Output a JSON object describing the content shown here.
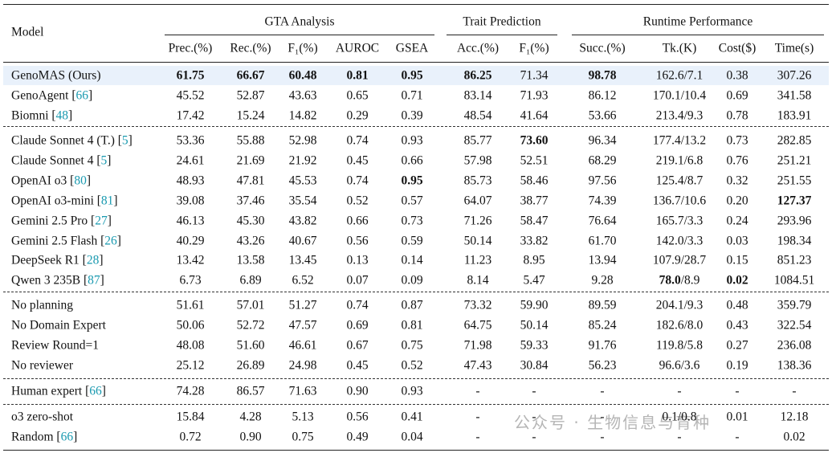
{
  "table": {
    "model_header": "Model",
    "groups": [
      {
        "title": "GTA Analysis",
        "columns": [
          "Prec.(%)",
          "Rec.(%)",
          "F₁(%)",
          "AUROC",
          "GSEA"
        ]
      },
      {
        "title": "Trait Prediction",
        "columns": [
          "Acc.(%)",
          "F₁(%)"
        ]
      },
      {
        "title": "Runtime Performance",
        "columns": [
          "Succ.(%)",
          "Tk.(K)",
          "Cost($)",
          "Time(s)"
        ]
      }
    ],
    "row_groups": [
      [
        {
          "model": [
            "GenoMAS (Ours)"
          ],
          "highlight": true,
          "bold": [
            0,
            1,
            2,
            3,
            4,
            5,
            7
          ],
          "cells": [
            "61.75",
            "66.67",
            "60.48",
            "0.81",
            "0.95",
            "86.25",
            "71.34",
            "98.78",
            "162.6/7.1",
            "0.38",
            "307.26"
          ]
        },
        {
          "model": [
            "GenoAgent [",
            "66",
            "]"
          ],
          "bold": [],
          "cells": [
            "45.52",
            "52.87",
            "43.63",
            "0.65",
            "0.71",
            "83.14",
            "71.93",
            "86.12",
            "170.1/10.4",
            "0.69",
            "341.58"
          ]
        },
        {
          "model": [
            "Biomni [",
            "48",
            "]"
          ],
          "bold": [],
          "cells": [
            "17.42",
            "15.24",
            "14.82",
            "0.29",
            "0.39",
            "48.54",
            "41.64",
            "53.66",
            "213.4/9.3",
            "0.78",
            "183.91"
          ]
        }
      ],
      [
        {
          "model": [
            "Claude Sonnet 4 (T.) [",
            "5",
            "]"
          ],
          "bold": [
            6
          ],
          "cells": [
            "53.36",
            "55.88",
            "52.98",
            "0.74",
            "0.93",
            "85.77",
            "73.60",
            "96.34",
            "177.4/13.2",
            "0.73",
            "282.85"
          ]
        },
        {
          "model": [
            "Claude Sonnet 4 [",
            "5",
            "]"
          ],
          "bold": [],
          "cells": [
            "24.61",
            "21.69",
            "21.92",
            "0.45",
            "0.66",
            "57.98",
            "52.51",
            "68.29",
            "219.1/6.8",
            "0.76",
            "251.21"
          ]
        },
        {
          "model": [
            "OpenAI o3 [",
            "80",
            "]"
          ],
          "bold": [
            4
          ],
          "cells": [
            "48.93",
            "47.81",
            "45.53",
            "0.74",
            "0.95",
            "85.73",
            "58.46",
            "97.56",
            "125.4/8.7",
            "0.32",
            "251.55"
          ]
        },
        {
          "model": [
            "OpenAI o3-mini [",
            "81",
            "]"
          ],
          "bold": [
            10
          ],
          "cells": [
            "39.08",
            "37.46",
            "35.54",
            "0.52",
            "0.57",
            "64.07",
            "38.77",
            "74.39",
            "136.7/10.6",
            "0.20",
            "127.37"
          ]
        },
        {
          "model": [
            "Gemini 2.5 Pro [",
            "27",
            "]"
          ],
          "bold": [],
          "cells": [
            "46.13",
            "45.30",
            "43.82",
            "0.66",
            "0.73",
            "71.26",
            "58.47",
            "76.64",
            "165.7/3.3",
            "0.24",
            "293.96"
          ]
        },
        {
          "model": [
            "Gemini 2.5 Flash [",
            "26",
            "]"
          ],
          "bold": [],
          "cells": [
            "40.29",
            "43.26",
            "40.67",
            "0.56",
            "0.59",
            "50.14",
            "33.82",
            "61.70",
            "142.0/3.3",
            "0.03",
            "198.34"
          ]
        },
        {
          "model": [
            "DeepSeek R1 [",
            "28",
            "]"
          ],
          "bold": [],
          "cells": [
            "13.42",
            "13.58",
            "13.45",
            "0.13",
            "0.14",
            "11.23",
            "8.95",
            "13.94",
            "107.9/28.7",
            "0.15",
            "851.23"
          ]
        },
        {
          "model": [
            "Qwen 3 235B [",
            "87",
            "]"
          ],
          "bold": [
            9
          ],
          "cells": [
            "6.73",
            "6.89",
            "6.52",
            "0.07",
            "0.09",
            "8.14",
            "5.47",
            "9.28",
            {
              "bold": "78.0",
              "rest": "/8.9"
            },
            "0.02",
            "1084.51"
          ]
        }
      ],
      [
        {
          "model": [
            "No planning"
          ],
          "bold": [],
          "cells": [
            "51.61",
            "57.01",
            "51.27",
            "0.74",
            "0.87",
            "73.32",
            "59.90",
            "89.59",
            "204.1/9.3",
            "0.48",
            "359.79"
          ]
        },
        {
          "model": [
            "No Domain Expert"
          ],
          "bold": [],
          "cells": [
            "50.06",
            "52.72",
            "47.57",
            "0.69",
            "0.81",
            "64.75",
            "50.14",
            "85.24",
            "182.6/8.0",
            "0.43",
            "322.54"
          ]
        },
        {
          "model": [
            "Review Round=1"
          ],
          "bold": [],
          "cells": [
            "48.08",
            "51.60",
            "46.61",
            "0.67",
            "0.75",
            "71.98",
            "59.33",
            "91.76",
            "119.8/5.8",
            "0.27",
            "236.08"
          ]
        },
        {
          "model": [
            "No reviewer"
          ],
          "bold": [],
          "cells": [
            "25.12",
            "26.89",
            "24.98",
            "0.45",
            "0.52",
            "47.43",
            "30.84",
            "56.23",
            "96.6/3.6",
            "0.19",
            "138.36"
          ]
        }
      ],
      [
        {
          "model": [
            "Human expert [",
            "66",
            "]"
          ],
          "bold": [],
          "cells": [
            "74.28",
            "86.57",
            "71.63",
            "0.90",
            "0.93",
            "-",
            "-",
            "-",
            "-",
            "-",
            "-"
          ]
        }
      ],
      [
        {
          "model": [
            "o3 zero-shot"
          ],
          "bold": [],
          "cells": [
            "15.84",
            "4.28",
            "5.13",
            "0.56",
            "0.41",
            "-",
            "-",
            "-",
            "0.1/0.8",
            "0.01",
            "12.18"
          ]
        },
        {
          "model": [
            "Random [",
            "66",
            "]"
          ],
          "bold": [],
          "cells": [
            "0.72",
            "0.90",
            "0.75",
            "0.49",
            "0.04",
            "-",
            "-",
            "-",
            "-",
            "-",
            "0.02"
          ]
        }
      ]
    ],
    "watermark": "公众号 · 生物信息与育种"
  }
}
